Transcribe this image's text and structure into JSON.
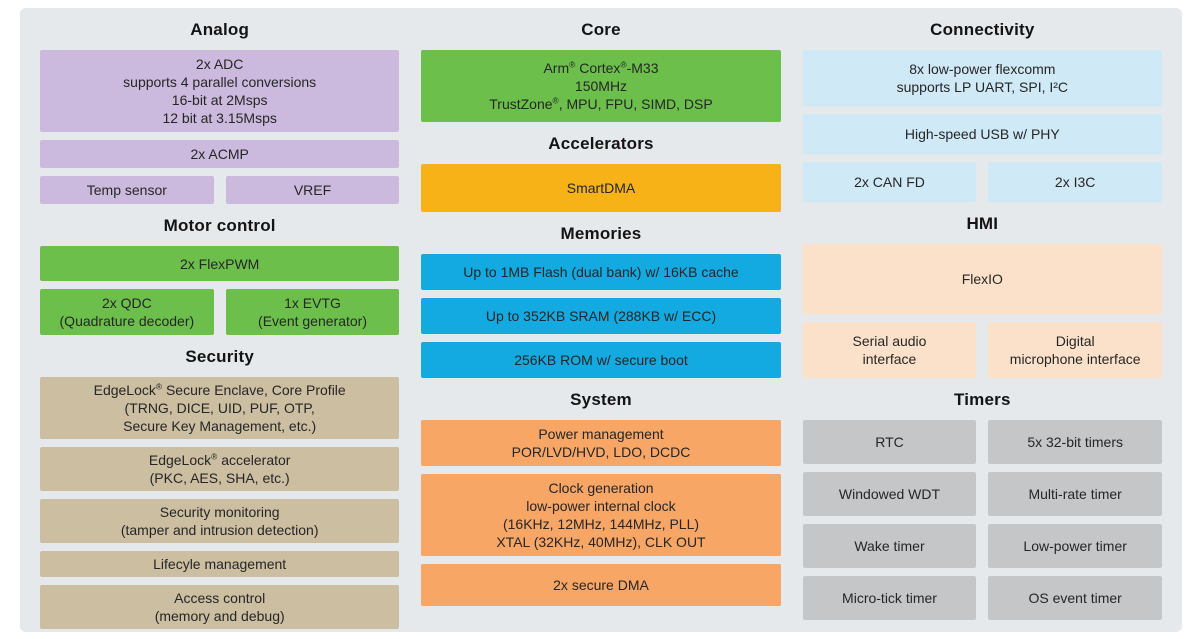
{
  "colors": {
    "page_bg": "#ffffff",
    "panel_bg": "#e6e9ec",
    "analog": "#ccb9de",
    "motor_control": "#6cbf4b",
    "security": "#ccbea1",
    "core": "#6cbf4b",
    "accelerators": "#f6b217",
    "memories": "#13a9e1",
    "system": "#f8a665",
    "connectivity": "#cfe9f6",
    "hmi": "#fce1ca",
    "timers": "#c5c6c7",
    "block_text": "#262626",
    "header_text": "#141414"
  },
  "columns": [
    {
      "sections": [
        {
          "key": "analog",
          "title": "Analog",
          "rows": [
            [
              {
                "lines": [
                  "2x ADC",
                  "supports 4 parallel conversions",
                  "16-bit at 2Msps",
                  "12 bit at 3.15Msps"
                ]
              }
            ],
            [
              {
                "lines": [
                  "2x ACMP"
                ]
              }
            ],
            [
              {
                "lines": [
                  "Temp sensor"
                ]
              },
              {
                "lines": [
                  "VREF"
                ]
              }
            ]
          ]
        },
        {
          "key": "motor_control",
          "title": "Motor control",
          "rows": [
            [
              {
                "lines": [
                  "2x FlexPWM"
                ]
              }
            ],
            [
              {
                "lines": [
                  "2x QDC",
                  "(Quadrature decoder)"
                ]
              },
              {
                "lines": [
                  "1x EVTG",
                  "(Event generator)"
                ]
              }
            ]
          ]
        },
        {
          "key": "security",
          "title": "Security",
          "rows": [
            [
              {
                "lines": [
                  "EdgeLock® Secure Enclave, Core Profile",
                  "(TRNG, DICE, UID, PUF, OTP,",
                  "Secure Key Management, etc.)"
                ]
              }
            ],
            [
              {
                "lines": [
                  "EdgeLock® accelerator",
                  "(PKC, AES, SHA, etc.)"
                ]
              }
            ],
            [
              {
                "lines": [
                  "Security monitoring",
                  "(tamper and intrusion detection)"
                ]
              }
            ],
            [
              {
                "lines": [
                  "Lifecyle management"
                ]
              }
            ],
            [
              {
                "lines": [
                  "Access control",
                  "(memory and debug)"
                ]
              }
            ]
          ]
        }
      ]
    },
    {
      "sections": [
        {
          "key": "core",
          "title": "Core",
          "rows": [
            [
              {
                "lines": [
                  "Arm® Cortex®-M33",
                  "150MHz",
                  "TrustZone®, MPU, FPU, SIMD, DSP"
                ]
              }
            ]
          ]
        },
        {
          "key": "accelerators",
          "title": "Accelerators",
          "rows": [
            [
              {
                "lines": [
                  "SmartDMA"
                ]
              }
            ]
          ]
        },
        {
          "key": "memories",
          "title": "Memories",
          "rows": [
            [
              {
                "lines": [
                  "Up to 1MB Flash (dual bank) w/ 16KB cache"
                ]
              }
            ],
            [
              {
                "lines": [
                  "Up to 352KB SRAM (288KB w/ ECC)"
                ]
              }
            ],
            [
              {
                "lines": [
                  "256KB ROM w/ secure boot"
                ]
              }
            ]
          ]
        },
        {
          "key": "system",
          "title": "System",
          "rows": [
            [
              {
                "lines": [
                  "Power management",
                  "POR/LVD/HVD, LDO, DCDC"
                ]
              }
            ],
            [
              {
                "lines": [
                  "Clock generation",
                  "low-power internal clock",
                  "(16KHz, 12MHz, 144MHz, PLL)",
                  "XTAL (32KHz, 40MHz), CLK OUT"
                ]
              }
            ],
            [
              {
                "lines": [
                  "2x secure DMA"
                ]
              }
            ]
          ]
        }
      ]
    },
    {
      "sections": [
        {
          "key": "connectivity",
          "title": "Connectivity",
          "rows": [
            [
              {
                "lines": [
                  "8x low-power flexcomm",
                  "supports LP UART, SPI, I²C"
                ]
              }
            ],
            [
              {
                "lines": [
                  "High-speed USB w/ PHY"
                ]
              }
            ],
            [
              {
                "lines": [
                  "2x CAN FD"
                ]
              },
              {
                "lines": [
                  "2x I3C"
                ]
              }
            ]
          ]
        },
        {
          "key": "hmi",
          "title": "HMI",
          "rows": [
            [
              {
                "lines": [
                  "FlexIO"
                ]
              }
            ],
            [
              {
                "lines": [
                  "Serial audio",
                  "interface"
                ]
              },
              {
                "lines": [
                  "Digital",
                  "microphone interface"
                ]
              }
            ]
          ]
        },
        {
          "key": "timers",
          "title": "Timers",
          "rows": [
            [
              {
                "lines": [
                  "RTC"
                ]
              },
              {
                "lines": [
                  "5x 32-bit timers"
                ]
              }
            ],
            [
              {
                "lines": [
                  "Windowed WDT"
                ]
              },
              {
                "lines": [
                  "Multi-rate timer"
                ]
              }
            ],
            [
              {
                "lines": [
                  "Wake timer"
                ]
              },
              {
                "lines": [
                  "Low-power timer"
                ]
              }
            ],
            [
              {
                "lines": [
                  "Micro-tick timer"
                ]
              },
              {
                "lines": [
                  "OS event timer"
                ]
              }
            ]
          ]
        }
      ]
    }
  ]
}
